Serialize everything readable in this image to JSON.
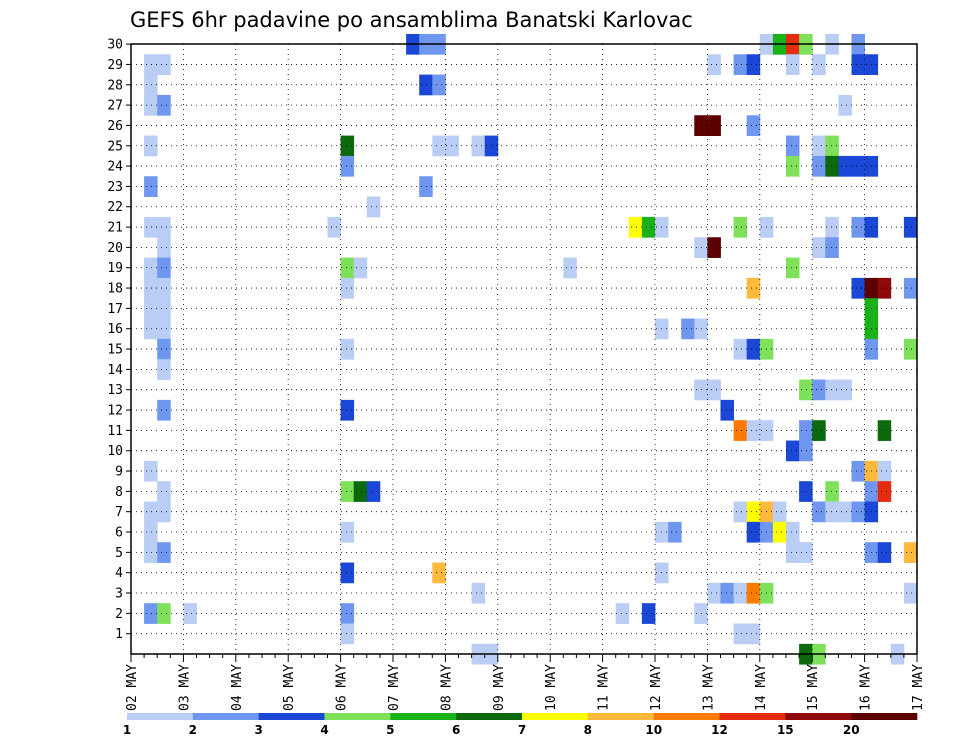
{
  "chart_data": {
    "type": "heatmap",
    "title": "GEFS 6hr padavine po ansamblima Banatski Karlovac",
    "x_tick_labels": [
      "02 MAY",
      "03 MAY",
      "04 MAY",
      "05 MAY",
      "06 MAY",
      "07 MAY",
      "08 MAY",
      "09 MAY",
      "10 MAY",
      "11 MAY",
      "12 MAY",
      "13 MAY",
      "14 MAY",
      "15 MAY",
      "16 MAY",
      "17 MAY"
    ],
    "y_tick_labels": [
      "1",
      "2",
      "3",
      "4",
      "5",
      "6",
      "7",
      "8",
      "9",
      "10",
      "11",
      "12",
      "13",
      "14",
      "15",
      "16",
      "17",
      "18",
      "19",
      "20",
      "21",
      "22",
      "23",
      "24",
      "25",
      "26",
      "27",
      "28",
      "29",
      "30"
    ],
    "x_range": [
      "02 MAY 00Z",
      "17 MAY 00Z"
    ],
    "time_step_hours": 6,
    "y_range": [
      0,
      30
    ],
    "grid": "dotted",
    "colorbar": {
      "labels": [
        "1",
        "2",
        "3",
        "4",
        "5",
        "6",
        "7",
        "8",
        "10",
        "12",
        "15",
        "20"
      ],
      "colors": [
        "#b9cdf5",
        "#6f97ef",
        "#1b47d6",
        "#7fe05a",
        "#19b319",
        "#0c6a0c",
        "#ffff00",
        "#ffba3d",
        "#ff7a00",
        "#e52b10",
        "#8e0a0a",
        "#5c0000"
      ]
    },
    "cells": [
      {
        "m": 29,
        "s": 1,
        "c": 0
      },
      {
        "m": 29,
        "s": 2,
        "c": 0
      },
      {
        "m": 28,
        "s": 1,
        "c": 0
      },
      {
        "m": 27,
        "s": 1,
        "c": 0
      },
      {
        "m": 27,
        "s": 2,
        "c": 1
      },
      {
        "m": 25,
        "s": 1,
        "c": 0
      },
      {
        "m": 23,
        "s": 1,
        "c": 1
      },
      {
        "m": 21,
        "s": 1,
        "c": 0
      },
      {
        "m": 21,
        "s": 2,
        "c": 0
      },
      {
        "m": 20,
        "s": 2,
        "c": 0
      },
      {
        "m": 19,
        "s": 1,
        "c": 0
      },
      {
        "m": 19,
        "s": 2,
        "c": 1
      },
      {
        "m": 18,
        "s": 1,
        "c": 0
      },
      {
        "m": 18,
        "s": 2,
        "c": 0
      },
      {
        "m": 17,
        "s": 1,
        "c": 0
      },
      {
        "m": 17,
        "s": 2,
        "c": 0
      },
      {
        "m": 16,
        "s": 1,
        "c": 0
      },
      {
        "m": 16,
        "s": 2,
        "c": 0
      },
      {
        "m": 15,
        "s": 2,
        "c": 1
      },
      {
        "m": 14,
        "s": 2,
        "c": 0
      },
      {
        "m": 12,
        "s": 2,
        "c": 1
      },
      {
        "m": 9,
        "s": 1,
        "c": 0
      },
      {
        "m": 8,
        "s": 2,
        "c": 0
      },
      {
        "m": 7,
        "s": 1,
        "c": 0
      },
      {
        "m": 7,
        "s": 2,
        "c": 0
      },
      {
        "m": 6,
        "s": 1,
        "c": 0
      },
      {
        "m": 5,
        "s": 1,
        "c": 0
      },
      {
        "m": 5,
        "s": 2,
        "c": 1
      },
      {
        "m": 2,
        "s": 1,
        "c": 1
      },
      {
        "m": 2,
        "s": 2,
        "c": 3
      },
      {
        "m": 2,
        "s": 4,
        "c": 0
      },
      {
        "m": 30,
        "s": 21,
        "c": 2
      },
      {
        "m": 30,
        "s": 22,
        "c": 1
      },
      {
        "m": 30,
        "s": 23,
        "c": 1
      },
      {
        "m": 28,
        "s": 22,
        "c": 2
      },
      {
        "m": 28,
        "s": 23,
        "c": 1
      },
      {
        "m": 25,
        "s": 23,
        "c": 0
      },
      {
        "m": 25,
        "s": 24,
        "c": 0
      },
      {
        "m": 25,
        "s": 26,
        "c": 0
      },
      {
        "m": 25,
        "s": 27,
        "c": 2
      },
      {
        "m": 23,
        "s": 22,
        "c": 1
      },
      {
        "m": 22,
        "s": 18,
        "c": 0
      },
      {
        "m": 21,
        "s": 15,
        "c": 0
      },
      {
        "m": 19,
        "s": 33,
        "c": 0
      },
      {
        "m": 25,
        "s": 16,
        "c": 5
      },
      {
        "m": 24,
        "s": 16,
        "c": 1
      },
      {
        "m": 19,
        "s": 16,
        "c": 3
      },
      {
        "m": 19,
        "s": 17,
        "c": 0
      },
      {
        "m": 18,
        "s": 16,
        "c": 0
      },
      {
        "m": 15,
        "s": 16,
        "c": 0
      },
      {
        "m": 12,
        "s": 16,
        "c": 2
      },
      {
        "m": 8,
        "s": 16,
        "c": 3
      },
      {
        "m": 8,
        "s": 17,
        "c": 5
      },
      {
        "m": 8,
        "s": 18,
        "c": 2
      },
      {
        "m": 6,
        "s": 16,
        "c": 0
      },
      {
        "m": 4,
        "s": 16,
        "c": 2
      },
      {
        "m": 4,
        "s": 23,
        "c": 7
      },
      {
        "m": 3,
        "s": 26,
        "c": 0
      },
      {
        "m": 2,
        "s": 16,
        "c": 1
      },
      {
        "m": 1,
        "s": 16,
        "c": 0
      },
      {
        "m": 0,
        "s": 26,
        "c": 0
      },
      {
        "m": 0,
        "s": 27,
        "c": 0
      },
      {
        "m": 21,
        "s": 38,
        "c": 6
      },
      {
        "m": 21,
        "s": 39,
        "c": 4
      },
      {
        "m": 21,
        "s": 40,
        "c": 0
      },
      {
        "m": 16,
        "s": 40,
        "c": 0
      },
      {
        "m": 6,
        "s": 40,
        "c": 0
      },
      {
        "m": 6,
        "s": 41,
        "c": 1
      },
      {
        "m": 4,
        "s": 40,
        "c": 0
      },
      {
        "m": 2,
        "s": 37,
        "c": 0
      },
      {
        "m": 2,
        "s": 39,
        "c": 2
      },
      {
        "m": 16,
        "s": 42,
        "c": 1
      },
      {
        "m": 16,
        "s": 43,
        "c": 0
      },
      {
        "m": 13,
        "s": 43,
        "c": 0
      },
      {
        "m": 13,
        "s": 44,
        "c": 0
      },
      {
        "m": 12,
        "s": 45,
        "c": 2
      },
      {
        "m": 26,
        "s": 43,
        "c": 11
      },
      {
        "m": 26,
        "s": 44,
        "c": 11
      },
      {
        "m": 20,
        "s": 43,
        "c": 0
      },
      {
        "m": 20,
        "s": 44,
        "c": 11
      },
      {
        "m": 3,
        "s": 44,
        "c": 0
      },
      {
        "m": 3,
        "s": 45,
        "c": 1
      },
      {
        "m": 2,
        "s": 43,
        "c": 0
      },
      {
        "m": 29,
        "s": 44,
        "c": 0
      },
      {
        "m": 30,
        "s": 48,
        "c": 0
      },
      {
        "m": 30,
        "s": 49,
        "c": 4
      },
      {
        "m": 30,
        "s": 50,
        "c": 9
      },
      {
        "m": 30,
        "s": 51,
        "c": 3
      },
      {
        "m": 30,
        "s": 53,
        "c": 0
      },
      {
        "m": 30,
        "s": 55,
        "c": 1
      },
      {
        "m": 29,
        "s": 46,
        "c": 1
      },
      {
        "m": 29,
        "s": 47,
        "c": 2
      },
      {
        "m": 29,
        "s": 50,
        "c": 0
      },
      {
        "m": 29,
        "s": 52,
        "c": 0
      },
      {
        "m": 29,
        "s": 55,
        "c": 2
      },
      {
        "m": 29,
        "s": 56,
        "c": 2
      },
      {
        "m": 27,
        "s": 54,
        "c": 0
      },
      {
        "m": 26,
        "s": 47,
        "c": 1
      },
      {
        "m": 25,
        "s": 50,
        "c": 1
      },
      {
        "m": 25,
        "s": 52,
        "c": 0
      },
      {
        "m": 25,
        "s": 53,
        "c": 3
      },
      {
        "m": 24,
        "s": 50,
        "c": 3
      },
      {
        "m": 24,
        "s": 52,
        "c": 1
      },
      {
        "m": 24,
        "s": 53,
        "c": 5
      },
      {
        "m": 24,
        "s": 54,
        "c": 2
      },
      {
        "m": 24,
        "s": 55,
        "c": 2
      },
      {
        "m": 24,
        "s": 56,
        "c": 2
      },
      {
        "m": 21,
        "s": 46,
        "c": 3
      },
      {
        "m": 21,
        "s": 48,
        "c": 0
      },
      {
        "m": 21,
        "s": 53,
        "c": 0
      },
      {
        "m": 21,
        "s": 55,
        "c": 1
      },
      {
        "m": 21,
        "s": 56,
        "c": 2
      },
      {
        "m": 21,
        "s": 59,
        "c": 2
      },
      {
        "m": 20,
        "s": 52,
        "c": 0
      },
      {
        "m": 20,
        "s": 53,
        "c": 1
      },
      {
        "m": 19,
        "s": 50,
        "c": 3
      },
      {
        "m": 18,
        "s": 47,
        "c": 7
      },
      {
        "m": 18,
        "s": 55,
        "c": 2
      },
      {
        "m": 18,
        "s": 56,
        "c": 11
      },
      {
        "m": 18,
        "s": 57,
        "c": 10
      },
      {
        "m": 18,
        "s": 59,
        "c": 1
      },
      {
        "m": 17,
        "s": 56,
        "c": 4
      },
      {
        "m": 16,
        "s": 56,
        "c": 4
      },
      {
        "m": 15,
        "s": 46,
        "c": 0
      },
      {
        "m": 15,
        "s": 47,
        "c": 2
      },
      {
        "m": 15,
        "s": 48,
        "c": 3
      },
      {
        "m": 15,
        "s": 56,
        "c": 1
      },
      {
        "m": 15,
        "s": 59,
        "c": 3
      },
      {
        "m": 13,
        "s": 51,
        "c": 3
      },
      {
        "m": 13,
        "s": 52,
        "c": 1
      },
      {
        "m": 13,
        "s": 53,
        "c": 0
      },
      {
        "m": 13,
        "s": 54,
        "c": 0
      },
      {
        "m": 11,
        "s": 46,
        "c": 8
      },
      {
        "m": 11,
        "s": 47,
        "c": 0
      },
      {
        "m": 11,
        "s": 48,
        "c": 0
      },
      {
        "m": 11,
        "s": 51,
        "c": 1
      },
      {
        "m": 11,
        "s": 52,
        "c": 5
      },
      {
        "m": 11,
        "s": 57,
        "c": 5
      },
      {
        "m": 10,
        "s": 50,
        "c": 2
      },
      {
        "m": 10,
        "s": 51,
        "c": 1
      },
      {
        "m": 9,
        "s": 55,
        "c": 1
      },
      {
        "m": 9,
        "s": 56,
        "c": 7
      },
      {
        "m": 9,
        "s": 57,
        "c": 0
      },
      {
        "m": 8,
        "s": 51,
        "c": 2
      },
      {
        "m": 8,
        "s": 53,
        "c": 3
      },
      {
        "m": 8,
        "s": 56,
        "c": 1
      },
      {
        "m": 8,
        "s": 57,
        "c": 9
      },
      {
        "m": 7,
        "s": 46,
        "c": 0
      },
      {
        "m": 7,
        "s": 47,
        "c": 6
      },
      {
        "m": 7,
        "s": 48,
        "c": 7
      },
      {
        "m": 7,
        "s": 49,
        "c": 0
      },
      {
        "m": 7,
        "s": 52,
        "c": 1
      },
      {
        "m": 7,
        "s": 53,
        "c": 0
      },
      {
        "m": 7,
        "s": 54,
        "c": 0
      },
      {
        "m": 7,
        "s": 55,
        "c": 1
      },
      {
        "m": 7,
        "s": 56,
        "c": 2
      },
      {
        "m": 6,
        "s": 47,
        "c": 2
      },
      {
        "m": 6,
        "s": 48,
        "c": 1
      },
      {
        "m": 6,
        "s": 49,
        "c": 6
      },
      {
        "m": 6,
        "s": 50,
        "c": 0
      },
      {
        "m": 5,
        "s": 50,
        "c": 0
      },
      {
        "m": 5,
        "s": 51,
        "c": 0
      },
      {
        "m": 5,
        "s": 56,
        "c": 1
      },
      {
        "m": 5,
        "s": 57,
        "c": 2
      },
      {
        "m": 5,
        "s": 59,
        "c": 7
      },
      {
        "m": 3,
        "s": 46,
        "c": 0
      },
      {
        "m": 3,
        "s": 47,
        "c": 8
      },
      {
        "m": 3,
        "s": 48,
        "c": 3
      },
      {
        "m": 3,
        "s": 59,
        "c": 0
      },
      {
        "m": 1,
        "s": 46,
        "c": 0
      },
      {
        "m": 1,
        "s": 47,
        "c": 0
      },
      {
        "m": 0,
        "s": 51,
        "c": 5
      },
      {
        "m": 0,
        "s": 52,
        "c": 3
      },
      {
        "m": 0,
        "s": 58,
        "c": 0
      }
    ]
  }
}
